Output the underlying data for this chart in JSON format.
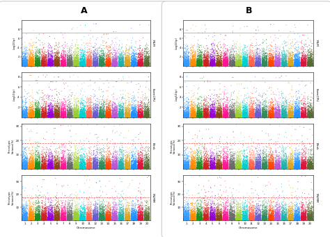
{
  "title_A": "A",
  "title_B": "B",
  "panel_labels_A": [
    "MLM",
    "FarmCPU",
    "Blink",
    "MLMM"
  ],
  "panel_labels_B": [
    "MLM",
    "FarmCPU",
    "Blink",
    "MLMM"
  ],
  "n_chromosomes": 20,
  "n_points_per_chr": 600,
  "sig_line_gray": 7.3,
  "sig_line_red": 18.0,
  "chr_colors": [
    "#3399FF",
    "#FF8C00",
    "#228B22",
    "#CC2222",
    "#9400D3",
    "#8B4513",
    "#FF1493",
    "#696969",
    "#9ACD32",
    "#00CED1",
    "#FF6347",
    "#6A5ACD",
    "#2E8B57",
    "#FF4500",
    "#BA55D3",
    "#20B2AA",
    "#DAA520",
    "#1E90FF",
    "#DC143C",
    "#556B2F"
  ],
  "xlabel": "Chromosome",
  "ylabel_neg_log": "-log10(p)",
  "ylabel_perc": "Phenotypic\nVariance(%)",
  "fig_bg": "#ffffff",
  "seed": 42,
  "panel_edge_color": "#cccccc",
  "sig_gray_color": "#888888",
  "sig_red_color": "#DD3333"
}
